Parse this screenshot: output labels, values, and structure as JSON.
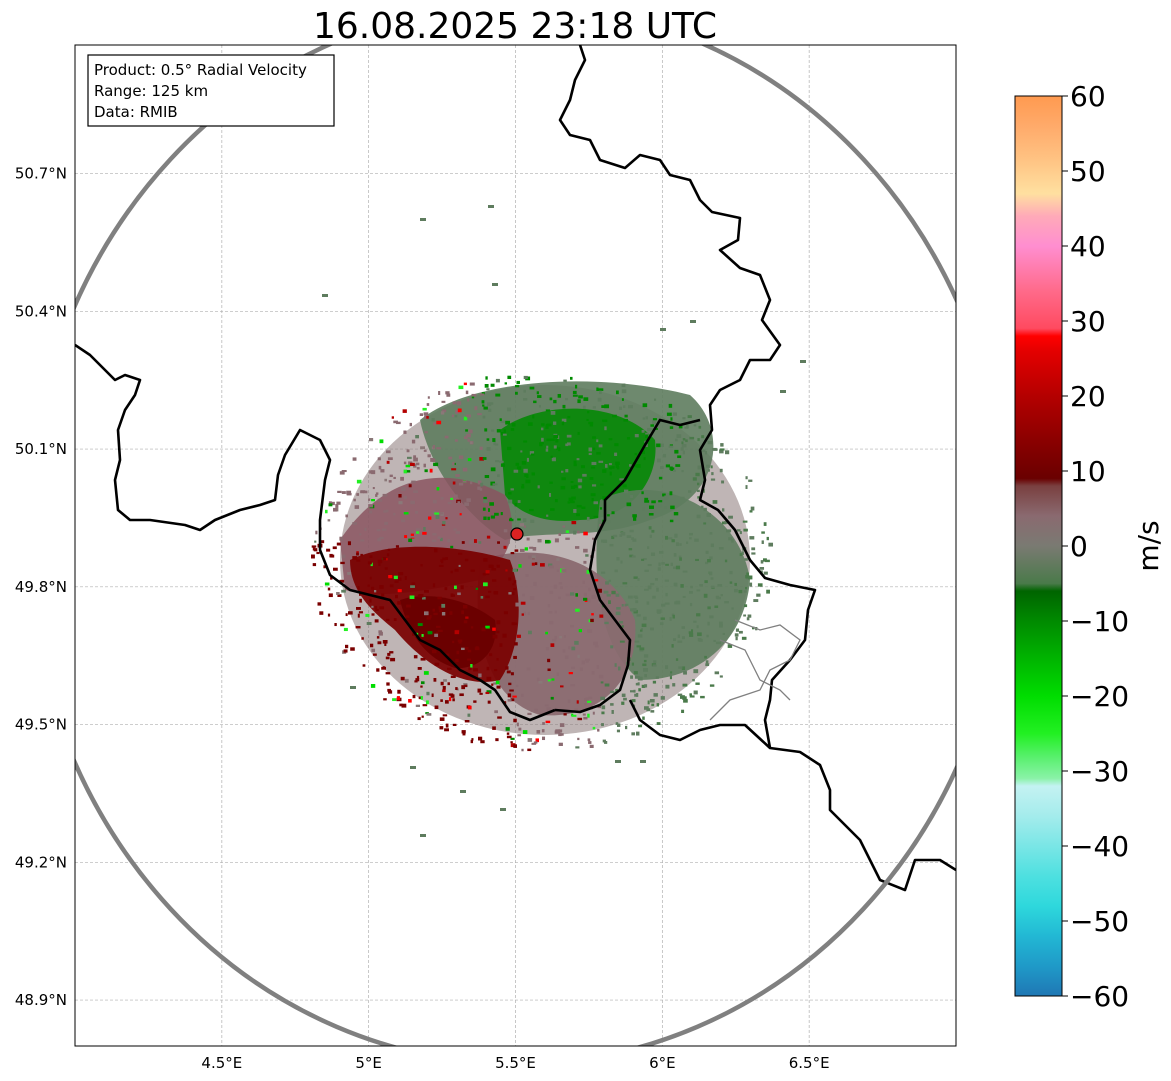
{
  "title": "16.08.2025 23:18 UTC",
  "infobox": {
    "lines": [
      "Product: 0.5° Radial Velocity",
      "Range: 125 km",
      "Data: RMIB"
    ]
  },
  "map": {
    "lon_range": [
      4.0,
      7.0
    ],
    "lat_range": [
      48.8,
      50.98
    ],
    "x_ticks": [
      {
        "value": 4.5,
        "label": "4.5°E"
      },
      {
        "value": 5.0,
        "label": "5°E"
      },
      {
        "value": 5.5,
        "label": "5.5°E"
      },
      {
        "value": 6.0,
        "label": "6°E"
      },
      {
        "value": 6.5,
        "label": "6.5°E"
      }
    ],
    "y_ticks": [
      {
        "value": 50.7,
        "label": "50.7°N"
      },
      {
        "value": 50.4,
        "label": "50.4°N"
      },
      {
        "value": 50.1,
        "label": "50.1°N"
      },
      {
        "value": 49.8,
        "label": "49.8°N"
      },
      {
        "value": 49.5,
        "label": "49.5°N"
      },
      {
        "value": 49.2,
        "label": "49.2°N"
      },
      {
        "value": 48.9,
        "label": "48.9°N"
      }
    ],
    "radar_site": {
      "lon": 5.505,
      "lat": 49.915
    },
    "range_ring_km": 125,
    "colors": {
      "range_ring": "#808080",
      "grid": "#b0b0b0",
      "border": "#000000",
      "subborder": "#808080",
      "radar_marker": "#dd2222"
    }
  },
  "colorbar": {
    "unit": "m/s",
    "min": -60,
    "max": 60,
    "ticks": [
      {
        "value": 60,
        "label": "60"
      },
      {
        "value": 50,
        "label": "50"
      },
      {
        "value": 40,
        "label": "40"
      },
      {
        "value": 30,
        "label": "30"
      },
      {
        "value": 20,
        "label": "20"
      },
      {
        "value": 10,
        "label": "10"
      },
      {
        "value": 0,
        "label": "0"
      },
      {
        "value": -10,
        "label": "−10"
      },
      {
        "value": -20,
        "label": "−20"
      },
      {
        "value": -30,
        "label": "−30"
      },
      {
        "value": -40,
        "label": "−40"
      },
      {
        "value": -50,
        "label": "−50"
      },
      {
        "value": -60,
        "label": "−60"
      }
    ],
    "stops": [
      {
        "value": -60,
        "color": "#1f77b4"
      },
      {
        "value": -56,
        "color": "#1f9ac8"
      },
      {
        "value": -52,
        "color": "#22b8d4"
      },
      {
        "value": -48,
        "color": "#2ed8dc"
      },
      {
        "value": -44,
        "color": "#4ee0e0"
      },
      {
        "value": -40,
        "color": "#7ae6e6"
      },
      {
        "value": -36,
        "color": "#a4ecec"
      },
      {
        "value": -32,
        "color": "#c4f2f2"
      },
      {
        "value": -31,
        "color": "#8af2a8"
      },
      {
        "value": -28,
        "color": "#56f06a"
      },
      {
        "value": -25,
        "color": "#22f022"
      },
      {
        "value": -20,
        "color": "#00dd00"
      },
      {
        "value": -15,
        "color": "#00b400"
      },
      {
        "value": -10,
        "color": "#008a00"
      },
      {
        "value": -6,
        "color": "#006400"
      },
      {
        "value": -5,
        "color": "#4a7a4a"
      },
      {
        "value": 0,
        "color": "#7a7a72"
      },
      {
        "value": 4,
        "color": "#8a6a70"
      },
      {
        "value": 8,
        "color": "#7a4040"
      },
      {
        "value": 9,
        "color": "#6a0000"
      },
      {
        "value": 14,
        "color": "#8a0000"
      },
      {
        "value": 20,
        "color": "#b40000"
      },
      {
        "value": 26,
        "color": "#e40000"
      },
      {
        "value": 28,
        "color": "#ff0000"
      },
      {
        "value": 29,
        "color": "#ff4a60"
      },
      {
        "value": 34,
        "color": "#ff6a8a"
      },
      {
        "value": 40,
        "color": "#ff8ed0"
      },
      {
        "value": 44,
        "color": "#ffaab8"
      },
      {
        "value": 47,
        "color": "#ffe0a0"
      },
      {
        "value": 52,
        "color": "#ffc080"
      },
      {
        "value": 56,
        "color": "#ffaa6a"
      },
      {
        "value": 60,
        "color": "#ff9a50"
      }
    ]
  }
}
